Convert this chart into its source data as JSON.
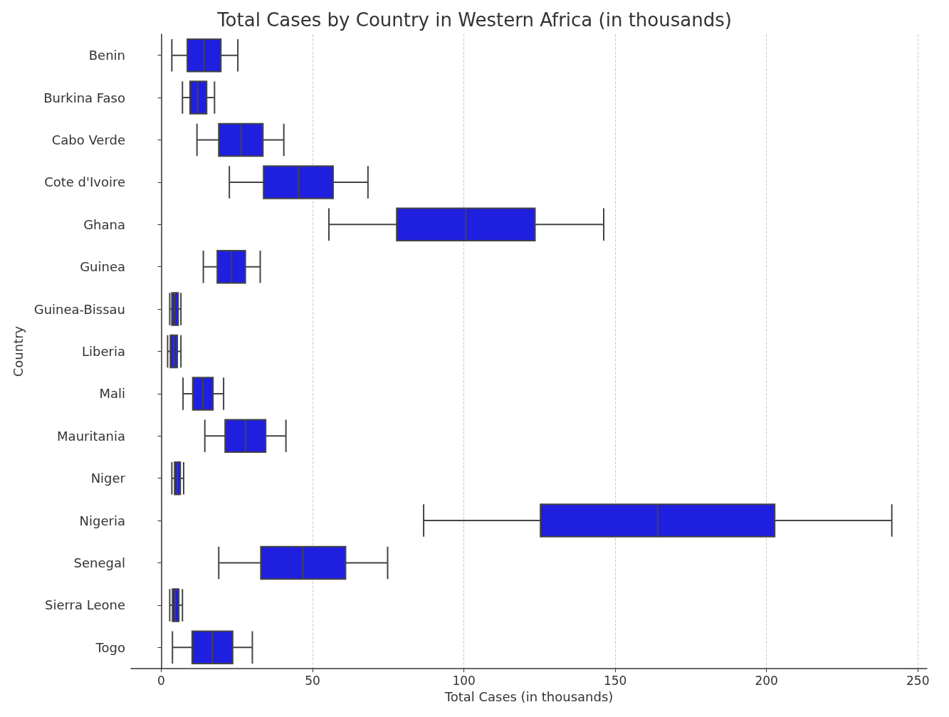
{
  "chart_data": {
    "type": "box",
    "title": "Total Cases by Country in Western Africa (in thousands)",
    "xlabel": "Total Cases (in thousands)",
    "ylabel": "Country",
    "orientation": "horizontal",
    "color": "#1f1fe0",
    "grid": "x",
    "xlim": [
      -10,
      253
    ],
    "xticks": [
      0,
      50,
      100,
      150,
      200,
      250
    ],
    "categories": [
      "Benin",
      "Burkina Faso",
      "Cabo Verde",
      "Cote d'Ivoire",
      "Ghana",
      "Guinea",
      "Guinea-Bissau",
      "Liberia",
      "Mali",
      "Mauritania",
      "Niger",
      "Nigeria",
      "Senegal",
      "Sierra Leone",
      "Togo"
    ],
    "boxes": [
      {
        "low": 3.5,
        "q1": 8.6,
        "median": 14.1,
        "q3": 19.7,
        "high": 25.3
      },
      {
        "low": 7,
        "q1": 9.5,
        "median": 12,
        "q3": 15,
        "high": 17.6
      },
      {
        "low": 11.8,
        "q1": 19,
        "median": 26.4,
        "q3": 33.6,
        "high": 40.5
      },
      {
        "low": 22.5,
        "q1": 33.8,
        "median": 45.4,
        "q3": 56.8,
        "high": 68.3
      },
      {
        "low": 55.4,
        "q1": 77.8,
        "median": 100.6,
        "q3": 123.5,
        "high": 146.2
      },
      {
        "low": 13.9,
        "q1": 18.5,
        "median": 23.2,
        "q3": 27.8,
        "high": 32.7
      },
      {
        "low": 2.8,
        "q1": 3.5,
        "median": 4.4,
        "q3": 5.6,
        "high": 6.5
      },
      {
        "low": 2.1,
        "q1": 3,
        "median": 4.2,
        "q3": 5.3,
        "high": 6.5
      },
      {
        "low": 7.2,
        "q1": 10.4,
        "median": 13.7,
        "q3": 17.1,
        "high": 20.6
      },
      {
        "low": 14.4,
        "q1": 21.1,
        "median": 27.8,
        "q3": 34.5,
        "high": 41.2
      },
      {
        "low": 3.5,
        "q1": 4.4,
        "median": 5.3,
        "q3": 6.3,
        "high": 7.4
      },
      {
        "low": 86.7,
        "q1": 125.3,
        "median": 164,
        "q3": 202.7,
        "high": 241.4
      },
      {
        "low": 19,
        "q1": 32.9,
        "median": 46.8,
        "q3": 60.9,
        "high": 74.8
      },
      {
        "low": 2.8,
        "q1": 3.7,
        "median": 4.6,
        "q3": 5.8,
        "high": 7
      },
      {
        "low": 3.7,
        "q1": 10.2,
        "median": 16.9,
        "q3": 23.6,
        "high": 30.1
      }
    ]
  }
}
